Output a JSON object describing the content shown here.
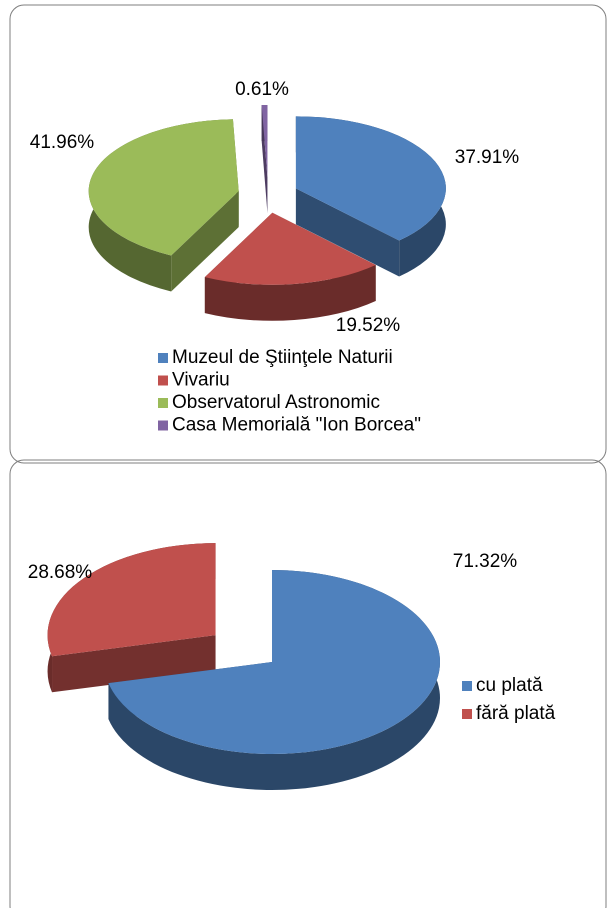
{
  "chart_data": [
    {
      "type": "pie",
      "categories": [
        "Muzeul de Ştiinţele Naturii",
        "Vivariu",
        "Observatorul Astronomic",
        "Casa Memorială \"Ion Borcea\""
      ],
      "values": [
        37.91,
        19.52,
        41.96,
        0.61
      ],
      "value_labels": [
        "37.91%",
        "19.52%",
        "41.96%",
        "0.61%"
      ],
      "colors": [
        "#4f81bd",
        "#c0504d",
        "#9bbb59",
        "#8064a2"
      ]
    },
    {
      "type": "pie",
      "categories": [
        "cu plată",
        "fără plată"
      ],
      "values": [
        71.32,
        28.68
      ],
      "value_labels": [
        "71.32%",
        "28.68%"
      ],
      "colors": [
        "#4f81bd",
        "#c0504d"
      ]
    }
  ]
}
